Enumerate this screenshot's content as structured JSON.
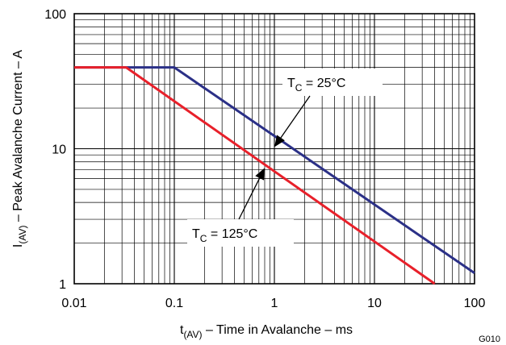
{
  "chart_data": {
    "type": "line",
    "x_scale": "log",
    "y_scale": "log",
    "xlim": [
      0.01,
      100
    ],
    "ylim": [
      1,
      100
    ],
    "grid": true,
    "xlabel": {
      "main": "t",
      "sub": "(AV)",
      "rest": " – Time in Avalanche – ms"
    },
    "ylabel": {
      "main": "I",
      "sub": "(AV)",
      "rest": " – Peak Avalanche Current – A"
    },
    "x_tick_labels": [
      {
        "value": 0.01,
        "label": "0.01"
      },
      {
        "value": 0.1,
        "label": "0.1"
      },
      {
        "value": 1,
        "label": "1"
      },
      {
        "value": 10,
        "label": "10"
      },
      {
        "value": 100,
        "label": "100"
      }
    ],
    "y_tick_labels": [
      {
        "value": 1,
        "label": "1"
      },
      {
        "value": 10,
        "label": "10"
      },
      {
        "value": 100,
        "label": "100"
      }
    ],
    "series": [
      {
        "name": "TC = 25°C",
        "color": "#2b3087",
        "x": [
          0.01,
          0.1,
          100
        ],
        "y": [
          40,
          40,
          1.2
        ]
      },
      {
        "name": "TC = 125°C",
        "color": "#e8202a",
        "x": [
          0.01,
          0.033,
          40
        ],
        "y": [
          40,
          40,
          1.0
        ]
      }
    ],
    "annotations": [
      {
        "main": "T",
        "sub": "C",
        "rest": " = 25°C",
        "color": "#2b3087",
        "arrow_to": [
          1.0,
          10.3
        ]
      },
      {
        "main": "T",
        "sub": "C",
        "rest": " = 125°C",
        "color": "#e8202a",
        "arrow_to": [
          0.8,
          7.2
        ]
      }
    ],
    "figure_code": "G010"
  }
}
